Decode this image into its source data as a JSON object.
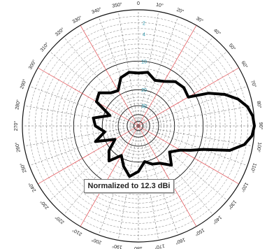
{
  "chart_data": {
    "type": "polar-line",
    "annotation": "Normalized to 12.3 dBi",
    "angle_tick_labels": [
      "0",
      "10°",
      "20°",
      "30°",
      "40°",
      "50°",
      "60°",
      "70°",
      "80°",
      "90°",
      "100°",
      "110°",
      "120°",
      "130°",
      "140°",
      "150°",
      "160°",
      "170°",
      "180",
      "190°",
      "200°",
      "210°",
      "220°",
      "230°",
      "240°",
      "250°",
      "260°",
      "270°",
      "280°",
      "290°",
      "300°",
      "310°",
      "320°",
      "330°",
      "340°",
      "350°"
    ],
    "radial_tick_labels": [
      "2",
      "4",
      "10",
      "20",
      "30"
    ],
    "radial_scale": "dB below peak",
    "series": [
      {
        "angles_deg": [
          0,
          10,
          20,
          30,
          40,
          50,
          60,
          65,
          70,
          75,
          80,
          85,
          90,
          95,
          100,
          105,
          110,
          115,
          120,
          130,
          140,
          150,
          160,
          170,
          180,
          190,
          200,
          210,
          220,
          230,
          240,
          250,
          260,
          270,
          280,
          290,
          300,
          310,
          320,
          330,
          340,
          350
        ],
        "values_db": [
          -13.5,
          -13,
          -15,
          -14,
          -12,
          -11.5,
          -12,
          -7,
          -4,
          -2,
          -0.8,
          -0.2,
          0,
          -0.3,
          -1.3,
          -3.5,
          -9,
          -12,
          -15,
          -18,
          -14,
          -17,
          -18,
          -20,
          -16,
          -14,
          -17,
          -21,
          -16,
          -19,
          -25,
          -16,
          -21,
          -17,
          -16,
          -23,
          -15,
          -14,
          -17,
          -18,
          -14,
          -13
        ]
      }
    ]
  }
}
